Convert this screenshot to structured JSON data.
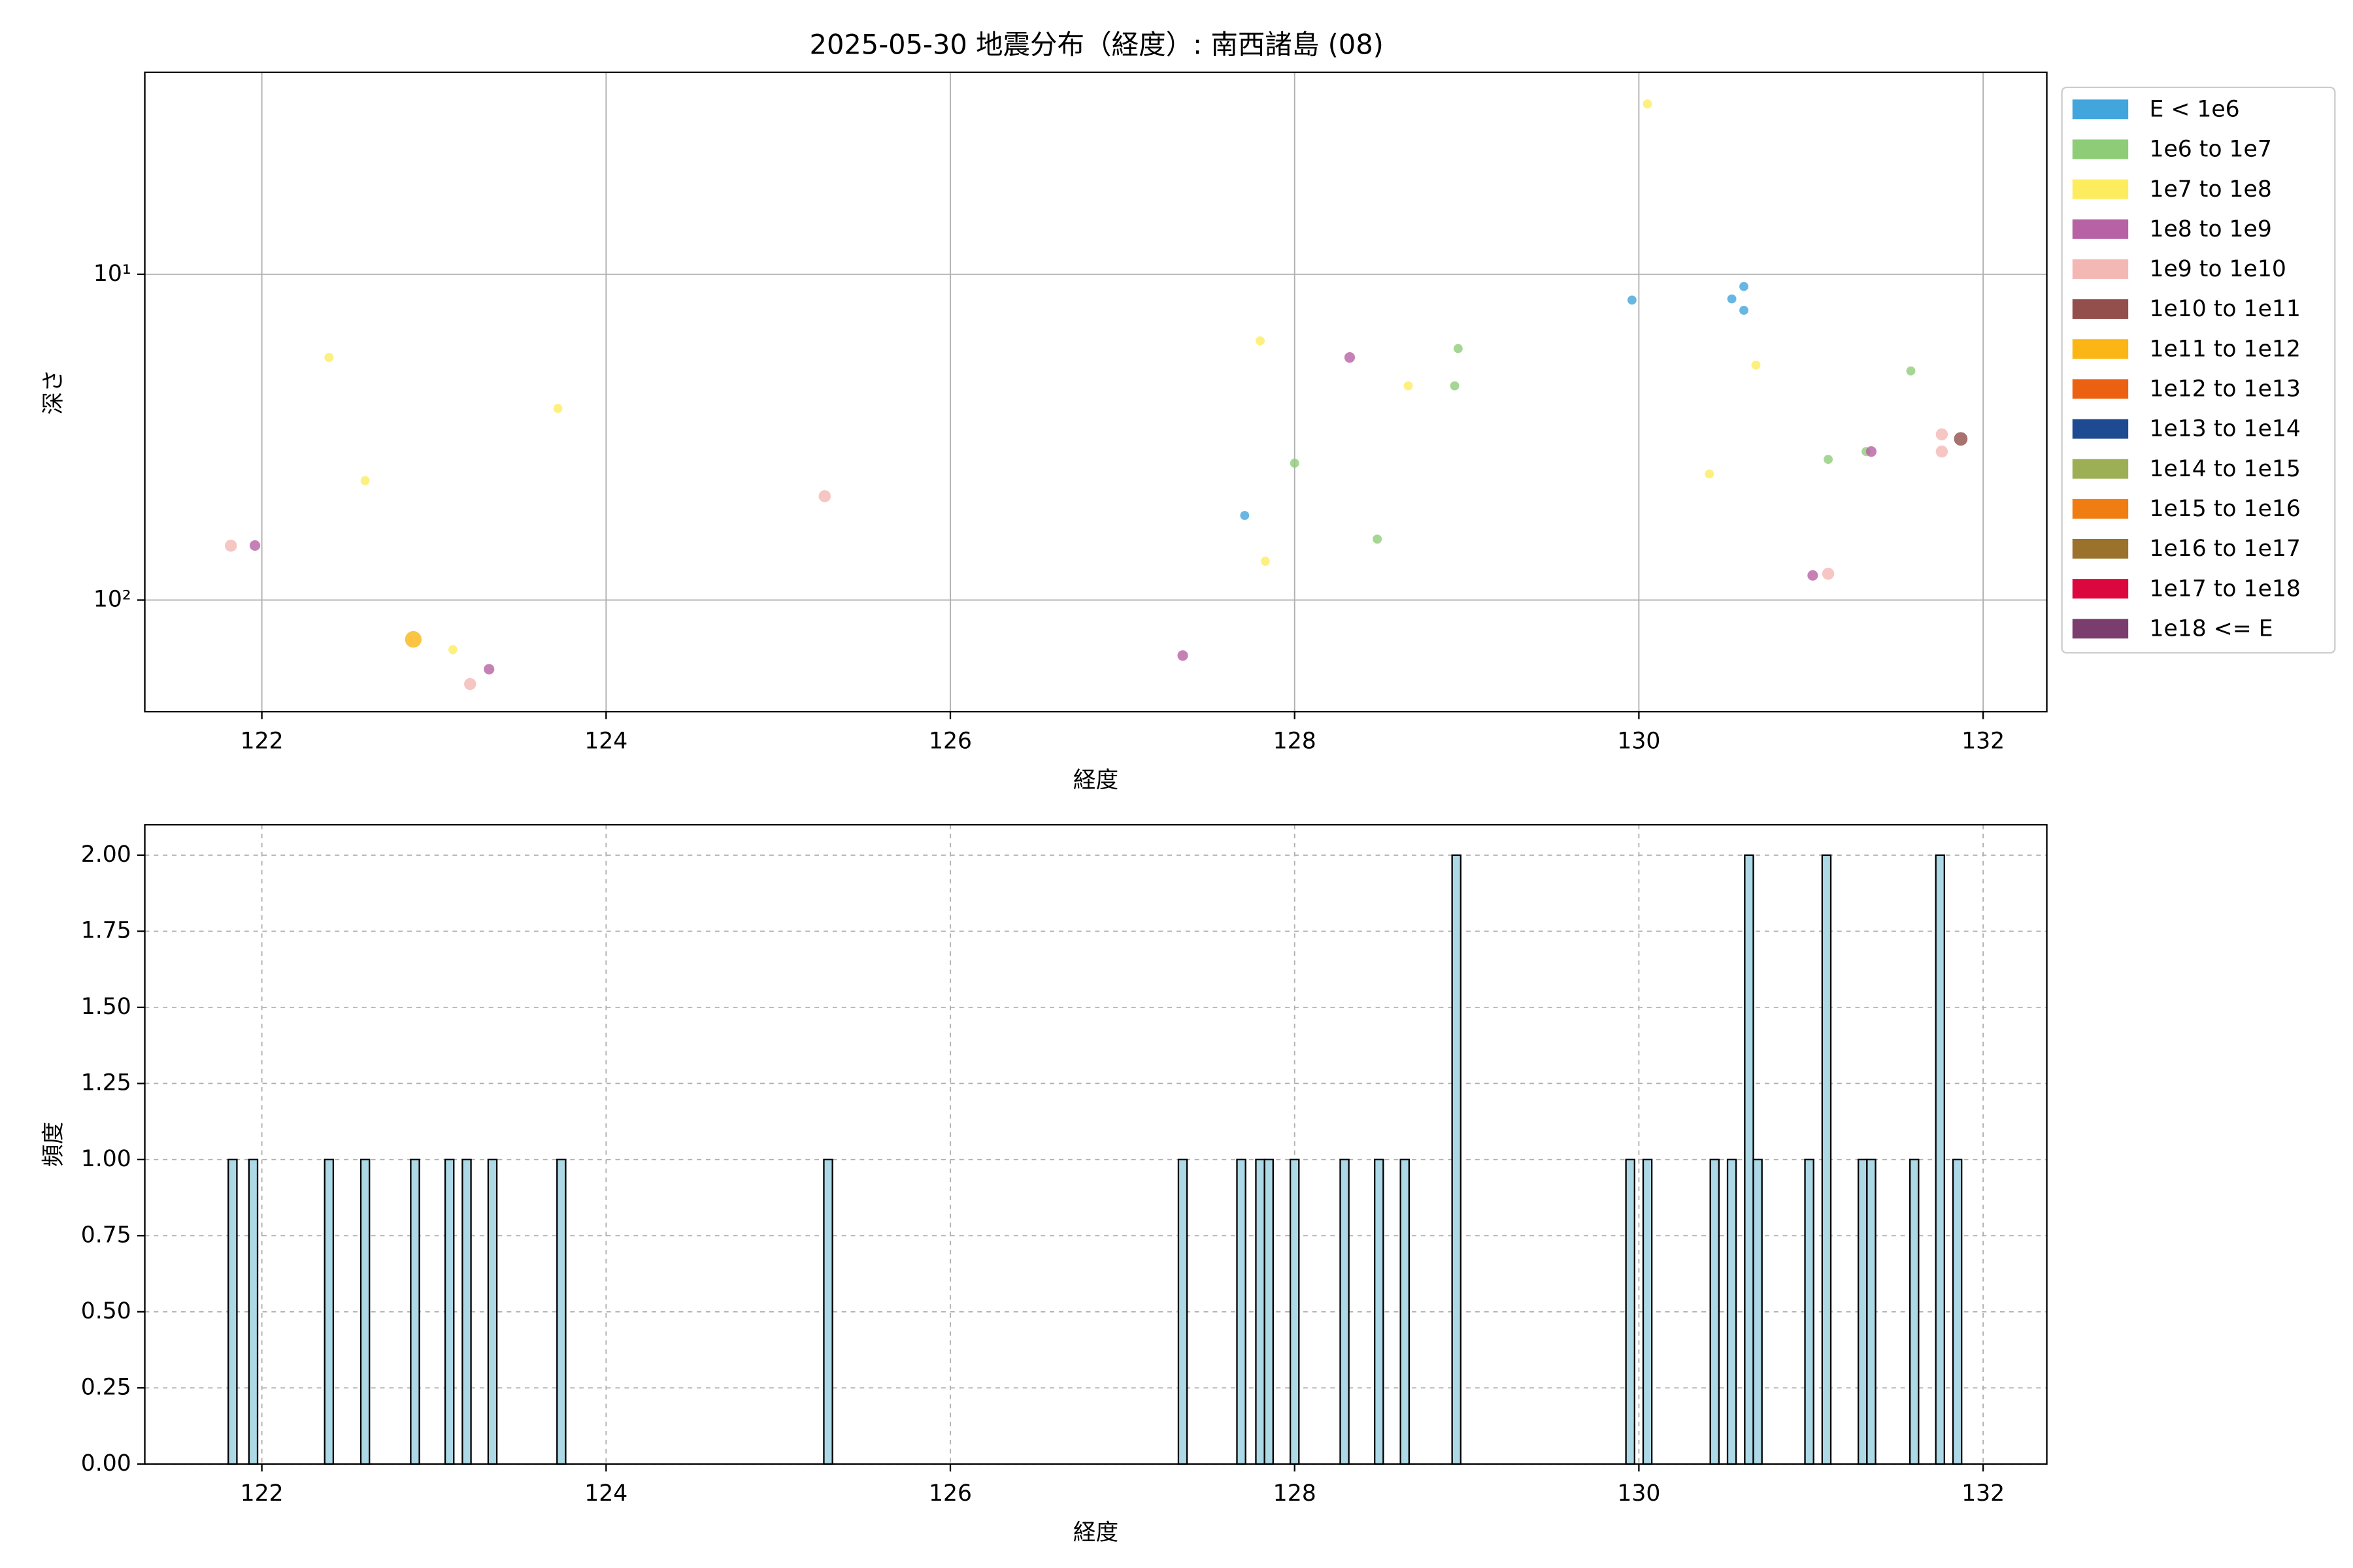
{
  "chart_data": [
    {
      "type": "scatter",
      "title": "2025-05-30 地震分布（経度）: 南西諸島 (08)",
      "x_label": "経度",
      "y_label": "深さ",
      "xlim": [
        121.32,
        132.37
      ],
      "xticks": [
        122,
        124,
        126,
        128,
        130,
        132
      ],
      "ylim": [
        220,
        2.4
      ],
      "yscale": "log",
      "yticks": [
        {
          "value": 10,
          "label": "10¹"
        },
        {
          "value": 100,
          "label": "10²"
        }
      ],
      "grid": true,
      "grid_style": "solid",
      "legend": "outside-right",
      "series": [
        {
          "name": "E < 1e6",
          "color": "#42a5dc",
          "marker_size": 3,
          "x": [
            127.71,
            129.96,
            130.54,
            130.61,
            130.61
          ],
          "y": [
            55,
            12,
            11.9,
            12.9,
            10.9
          ]
        },
        {
          "name": "1e6 to 1e7",
          "color": "#8fcc78",
          "marker_size": 3,
          "x": [
            128.0,
            128.48,
            128.93,
            128.95,
            131.1,
            131.32,
            131.58
          ],
          "y": [
            38,
            65,
            22,
            16.9,
            37,
            35,
            19.8
          ]
        },
        {
          "name": "1e7 to 1e8",
          "color": "#fdec5e",
          "marker_size": 3,
          "x": [
            122.39,
            122.6,
            123.11,
            123.72,
            127.8,
            127.83,
            128.66,
            130.05,
            130.41,
            130.68
          ],
          "y": [
            18,
            43,
            142,
            25.8,
            16,
            76,
            22,
            3.0,
            41,
            19
          ]
        },
        {
          "name": "1e8 to 1e9",
          "color": "#b662a4",
          "marker_size": 3.5,
          "x": [
            121.96,
            123.32,
            127.35,
            128.32,
            131.01,
            131.35
          ],
          "y": [
            68,
            163,
            148,
            18,
            84,
            35
          ]
        },
        {
          "name": "1e9 to 1e10",
          "color": "#f4b8b4",
          "marker_size": 4,
          "x": [
            121.82,
            123.21,
            125.27,
            131.1,
            131.76,
            131.76
          ],
          "y": [
            68.1,
            181,
            48,
            83,
            31,
            35
          ]
        },
        {
          "name": "1e10 to 1e11",
          "color": "#924f4b",
          "marker_size": 4.5,
          "x": [
            131.87
          ],
          "y": [
            32
          ]
        },
        {
          "name": "1e11 to 1e12",
          "color": "#fbb515",
          "marker_size": 5.5,
          "x": [
            122.88
          ],
          "y": [
            132
          ]
        },
        {
          "name": "1e12 to 1e13",
          "color": "#ec6111",
          "marker_size": 6,
          "x": [],
          "y": []
        },
        {
          "name": "1e13 to 1e14",
          "color": "#1d4a90",
          "marker_size": 6,
          "x": [],
          "y": []
        },
        {
          "name": "1e14 to 1e15",
          "color": "#9daf54",
          "marker_size": 6,
          "x": [],
          "y": []
        },
        {
          "name": "1e15 to 1e16",
          "color": "#f07d12",
          "marker_size": 6,
          "x": [],
          "y": []
        },
        {
          "name": "1e16 to 1e17",
          "color": "#9a722c",
          "marker_size": 6,
          "x": [],
          "y": []
        },
        {
          "name": "1e17 to 1e18",
          "color": "#dc073f",
          "marker_size": 6,
          "x": [],
          "y": []
        },
        {
          "name": "1e18 <= E",
          "color": "#7b3c6e",
          "marker_size": 6,
          "x": [],
          "y": []
        }
      ]
    },
    {
      "type": "histogram",
      "x_label": "経度",
      "y_label": "頻度",
      "xlim": [
        121.32,
        132.37
      ],
      "xticks": [
        122,
        124,
        126,
        128,
        130,
        132
      ],
      "ylim": [
        0,
        2.1
      ],
      "yticks": [
        {
          "value": 0,
          "label": "0.00"
        },
        {
          "value": 0.25,
          "label": "0.25"
        },
        {
          "value": 0.5,
          "label": "0.50"
        },
        {
          "value": 0.75,
          "label": "0.75"
        },
        {
          "value": 1,
          "label": "1.00"
        },
        {
          "value": 1.25,
          "label": "1.25"
        },
        {
          "value": 1.5,
          "label": "1.50"
        },
        {
          "value": 1.75,
          "label": "1.75"
        },
        {
          "value": 2,
          "label": "2.00"
        }
      ],
      "grid": true,
      "grid_style": "dashed",
      "color": "#add8e6",
      "bins": [
        121.805,
        121.855,
        121.925,
        121.975,
        122.365,
        122.415,
        122.575,
        122.625,
        122.865,
        122.915,
        123.065,
        123.115,
        123.165,
        123.215,
        123.315,
        123.365,
        123.715,
        123.765,
        125.265,
        125.315,
        127.325,
        127.375,
        127.665,
        127.715,
        127.775,
        127.825,
        127.875,
        127.975,
        128.025,
        128.265,
        128.315,
        128.465,
        128.515,
        128.615,
        128.665,
        128.915,
        128.965,
        129.925,
        129.975,
        130.025,
        130.075,
        130.415,
        130.465,
        130.515,
        130.565,
        130.615,
        130.665,
        130.715,
        130.965,
        131.015,
        131.065,
        131.115,
        131.275,
        131.325,
        131.375,
        131.575,
        131.625,
        131.725,
        131.775,
        131.825,
        131.875
      ],
      "values": [
        1,
        0,
        1,
        0,
        1,
        0,
        1,
        0,
        1,
        0,
        1,
        0,
        1,
        0,
        1,
        0,
        1,
        0,
        1,
        0,
        1,
        0,
        1,
        0,
        1,
        1,
        0,
        1,
        0,
        1,
        0,
        1,
        0,
        1,
        0,
        2,
        0,
        1,
        0,
        1,
        0,
        1,
        0,
        1,
        0,
        2,
        1,
        0,
        1,
        0,
        2,
        0,
        1,
        1,
        0,
        1,
        0,
        2,
        0,
        1
      ]
    }
  ]
}
